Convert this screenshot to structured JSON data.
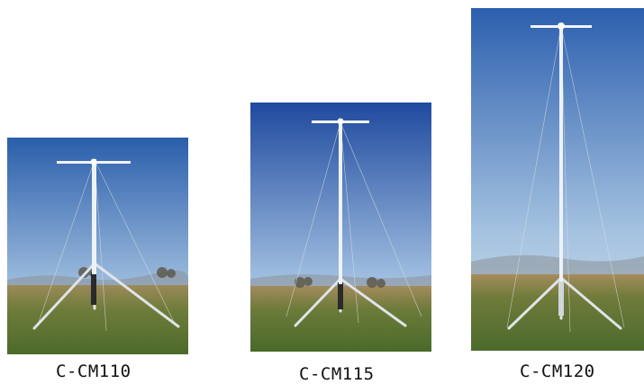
{
  "products": [
    {
      "name": "C-CM110"
    },
    {
      "name": "C-CM115"
    },
    {
      "name": "C-CM120"
    }
  ],
  "colors": {
    "sky_top": "#2b5aa8",
    "sky_bottom": "#bcd3e8",
    "field": "#7f8a3e",
    "grass": "#4f6a2c",
    "mast": "#e9eef2"
  }
}
